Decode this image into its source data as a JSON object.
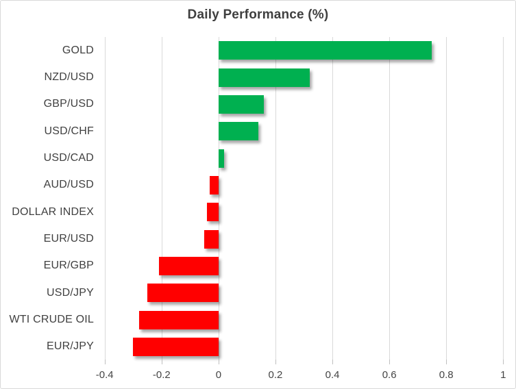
{
  "chart_data": {
    "type": "bar",
    "orientation": "horizontal",
    "title": "Daily Performance (%)",
    "categories": [
      "GOLD",
      "NZD/USD",
      "GBP/USD",
      "USD/CHF",
      "USD/CAD",
      "AUD/USD",
      "DOLLAR INDEX",
      "EUR/USD",
      "EUR/GBP",
      "USD/JPY",
      "WTI CRUDE OIL",
      "EUR/JPY"
    ],
    "values": [
      0.75,
      0.32,
      0.16,
      0.14,
      0.02,
      -0.03,
      -0.04,
      -0.05,
      -0.21,
      -0.25,
      -0.28,
      -0.3
    ],
    "xlabel": "",
    "ylabel": "",
    "xlim": [
      -0.4,
      1.0
    ],
    "x_ticks": [
      -0.4,
      -0.2,
      0,
      0.2,
      0.4,
      0.6,
      0.8,
      1
    ],
    "x_tick_labels": [
      "-0.4",
      "-0.2",
      "0",
      "0.2",
      "0.4",
      "0.6",
      "0.8",
      "1"
    ],
    "grid": true,
    "legend": false,
    "positive_color": "#00B050",
    "negative_color": "#FF0000"
  },
  "colors": {
    "gridline": "#D9D9D9",
    "tick": "#BFBFBF",
    "border": "#D9D9D9",
    "title_text": "#3F3F3F",
    "axis_text": "#444444",
    "category_text": "#404040",
    "background": "#FFFFFF"
  }
}
